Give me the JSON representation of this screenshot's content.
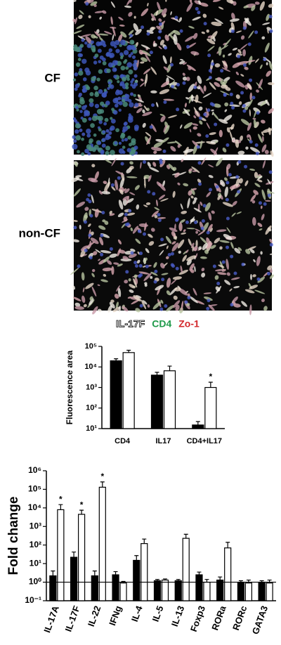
{
  "panels": [
    {
      "label": "CF"
    },
    {
      "label": "non-CF"
    }
  ],
  "stain_legend": [
    {
      "text": "IL-17F",
      "color": "#ffffff",
      "outline": "#000000"
    },
    {
      "text": "CD4",
      "color": "#1f9a4a"
    },
    {
      "text": "Zo-1",
      "color": "#d3272b"
    }
  ],
  "chart_data": [
    {
      "type": "bar",
      "y_label": "Fluorescence area",
      "log": true,
      "categories": [
        "CD4",
        "IL17",
        "CD4+IL17"
      ],
      "series": [
        {
          "color": "#000000",
          "values": [
            20000,
            4000,
            15
          ],
          "errors": [
            5000,
            1500,
            7
          ]
        },
        {
          "color": "#ffffff",
          "values": [
            50000,
            6500,
            1000
          ],
          "errors": [
            15000,
            4500,
            800
          ],
          "annotations": [
            null,
            null,
            "*"
          ]
        }
      ],
      "ylim": [
        10,
        100000
      ],
      "yticks": [
        {
          "value": 10,
          "label": "10¹"
        },
        {
          "value": 100,
          "label": "10²"
        },
        {
          "value": 1000,
          "label": "10³"
        },
        {
          "value": 10000,
          "label": "10⁴"
        },
        {
          "value": 100000,
          "label": "10⁵"
        }
      ]
    },
    {
      "type": "bar",
      "y_label": "Fold change",
      "log": true,
      "hline": 1,
      "categories": [
        "IL-17A",
        "IL-17F",
        "IL-22",
        "IFNg",
        "IL-4",
        "IL-5",
        "IL-13",
        "Foxp3",
        "RORa",
        "RORc",
        "GATA3"
      ],
      "series": [
        {
          "color": "#000000",
          "values": [
            2.2,
            22,
            2.2,
            2.5,
            15,
            1.2,
            1.2,
            2.5,
            1.3,
            1.0,
            1.0
          ],
          "errors": [
            1.8,
            20,
            1.8,
            1.2,
            12,
            0.2,
            0.2,
            1.0,
            0.6,
            0.2,
            0.2
          ]
        },
        {
          "color": "#ffffff",
          "values": [
            8000,
            4500,
            130000,
            0.9,
            120,
            1.3,
            230,
            1.0,
            70,
            0.9,
            0.9
          ],
          "errors": [
            7000,
            3000,
            120000,
            0.2,
            90,
            0.2,
            150,
            0.4,
            70,
            0.4,
            0.4
          ],
          "annotations": [
            "*",
            "*",
            "*",
            null,
            null,
            null,
            null,
            null,
            null,
            null,
            null
          ]
        }
      ],
      "ylim": [
        0.1,
        1000000
      ],
      "yticks": [
        {
          "value": 0.1,
          "label": "10⁻¹"
        },
        {
          "value": 1,
          "label": "10⁰"
        },
        {
          "value": 10,
          "label": "10¹"
        },
        {
          "value": 100,
          "label": "10²"
        },
        {
          "value": 1000,
          "label": "10³"
        },
        {
          "value": 10000,
          "label": "10⁴"
        },
        {
          "value": 100000,
          "label": "10⁵"
        },
        {
          "value": 1000000,
          "label": "10⁶"
        }
      ]
    }
  ]
}
